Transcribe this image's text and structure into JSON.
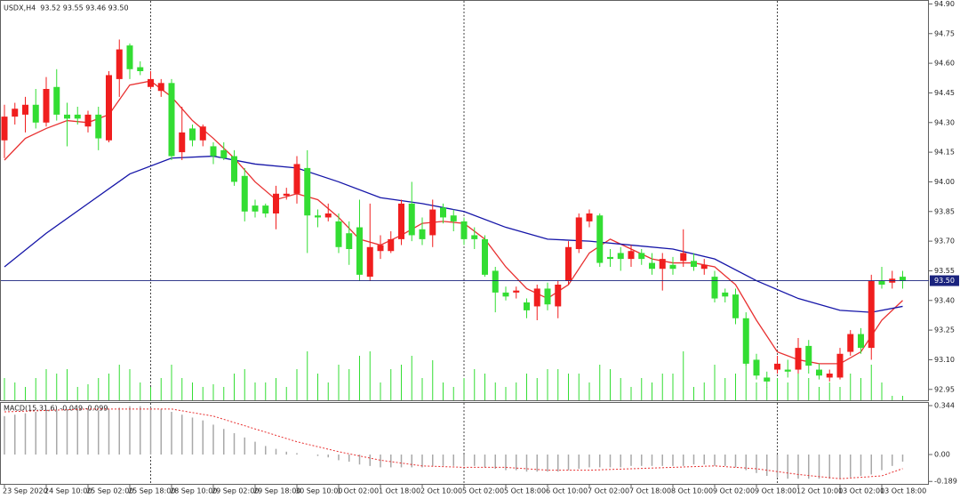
{
  "chart_data": {
    "type": "candlestick",
    "title": "USDX,H4  93.52 93.55 93.46 93.50",
    "categories": [
      "23 Sep 2020",
      null,
      null,
      null,
      "24 Sep 10:00",
      null,
      null,
      null,
      "25 Sep 02:00",
      null,
      null,
      null,
      "25 Sep 18:00",
      null,
      null,
      null,
      "28 Sep 10:00",
      null,
      null,
      null,
      "29 Sep 02:00",
      null,
      null,
      null,
      "29 Sep 18:00",
      null,
      null,
      null,
      "30 Sep 10:00",
      null,
      null,
      null,
      "1 Oct 02:00",
      null,
      null,
      null,
      "1 Oct 18:00",
      null,
      null,
      null,
      "2 Oct 10:00",
      null,
      null,
      null,
      "5 Oct 02:00",
      null,
      null,
      null,
      "5 Oct 18:00",
      null,
      null,
      null,
      "6 Oct 10:00",
      null,
      null,
      null,
      "7 Oct 02:00",
      null,
      null,
      null,
      "7 Oct 18:00",
      null,
      null,
      null,
      "8 Oct 10:00",
      null,
      null,
      null,
      "9 Oct 02:00",
      null,
      null,
      null,
      "9 Oct 18:00",
      null,
      null,
      null,
      "12 Oct 10:00",
      null,
      null,
      null,
      "13 Oct 02:00",
      null,
      null,
      null,
      "13 Oct 18:00",
      null,
      null
    ],
    "open": [
      94.21,
      94.33,
      94.34,
      94.39,
      94.3,
      94.48,
      94.34,
      94.34,
      94.28,
      94.34,
      94.21,
      94.52,
      94.69,
      94.58,
      94.48,
      94.46,
      94.5,
      94.15,
      94.27,
      94.21,
      94.18,
      94.16,
      94.13,
      94.03,
      93.88,
      93.88,
      93.84,
      93.93,
      93.94,
      94.07,
      93.83,
      93.82,
      93.8,
      93.74,
      93.77,
      93.52,
      93.65,
      93.65,
      93.71,
      93.89,
      93.76,
      93.73,
      93.87,
      93.83,
      93.8,
      93.73,
      93.71,
      93.55,
      93.44,
      93.44,
      93.39,
      93.37,
      93.46,
      93.37,
      93.5,
      93.66,
      93.8,
      93.83,
      93.62,
      93.64,
      93.61,
      93.64,
      93.59,
      93.56,
      93.58,
      93.6,
      93.6,
      93.56,
      93.52,
      93.44,
      93.43,
      93.31,
      93.1,
      93.01,
      93.05,
      93.05,
      93.05,
      93.17,
      93.05,
      93.01,
      93.01,
      93.14,
      93.23,
      93.16,
      93.5,
      93.49,
      93.52
    ],
    "high": [
      94.39,
      94.4,
      94.43,
      94.47,
      94.53,
      94.57,
      94.4,
      94.38,
      94.36,
      94.38,
      94.56,
      94.72,
      94.7,
      94.61,
      94.56,
      94.52,
      94.52,
      94.38,
      94.29,
      94.29,
      94.2,
      94.2,
      94.16,
      94.07,
      93.91,
      93.89,
      93.98,
      93.97,
      94.13,
      94.16,
      93.86,
      93.89,
      93.84,
      93.8,
      93.91,
      93.89,
      93.73,
      93.75,
      93.91,
      94.0,
      93.82,
      93.91,
      93.89,
      93.86,
      93.82,
      93.77,
      93.73,
      93.57,
      93.47,
      93.47,
      93.41,
      93.48,
      93.49,
      93.5,
      93.7,
      93.84,
      93.86,
      93.84,
      93.66,
      93.67,
      93.68,
      93.66,
      93.64,
      93.64,
      93.62,
      93.76,
      93.64,
      93.61,
      93.55,
      93.46,
      93.46,
      93.34,
      93.13,
      93.04,
      93.12,
      93.1,
      93.21,
      93.2,
      93.08,
      93.05,
      93.16,
      93.25,
      93.26,
      93.53,
      93.57,
      93.55,
      93.55
    ],
    "low": [
      94.12,
      94.29,
      94.25,
      94.27,
      94.28,
      94.31,
      94.18,
      94.29,
      94.25,
      94.16,
      94.2,
      94.43,
      94.52,
      94.54,
      94.47,
      94.43,
      94.11,
      94.11,
      94.18,
      94.18,
      94.09,
      94.11,
      93.98,
      93.8,
      93.82,
      93.82,
      93.76,
      93.91,
      93.89,
      93.64,
      93.77,
      93.8,
      93.64,
      93.58,
      93.5,
      93.5,
      93.61,
      93.64,
      93.68,
      93.7,
      93.68,
      93.67,
      93.79,
      93.75,
      93.68,
      93.66,
      93.52,
      93.34,
      93.4,
      93.41,
      93.31,
      93.3,
      93.35,
      93.31,
      93.48,
      93.64,
      93.77,
      93.57,
      93.57,
      93.55,
      93.57,
      93.58,
      93.53,
      93.45,
      93.53,
      93.57,
      93.55,
      93.53,
      93.39,
      93.39,
      93.28,
      93.07,
      93.0,
      92.96,
      93.03,
      93.01,
      93.03,
      93.03,
      93.0,
      92.99,
      93.0,
      93.12,
      93.13,
      93.1,
      93.46,
      93.46,
      93.46
    ],
    "close": [
      94.33,
      94.37,
      94.39,
      94.3,
      94.47,
      94.34,
      94.32,
      94.32,
      94.34,
      94.22,
      94.54,
      94.67,
      94.57,
      94.56,
      94.52,
      94.5,
      94.13,
      94.25,
      94.21,
      94.28,
      94.13,
      94.12,
      94.0,
      93.85,
      93.85,
      93.84,
      93.94,
      93.94,
      94.09,
      93.83,
      93.82,
      93.84,
      93.67,
      93.66,
      93.53,
      93.67,
      93.68,
      93.71,
      93.89,
      93.73,
      93.71,
      93.86,
      93.82,
      93.8,
      93.71,
      93.71,
      93.53,
      93.44,
      93.42,
      93.45,
      93.35,
      93.46,
      93.38,
      93.48,
      93.67,
      93.82,
      93.84,
      93.59,
      93.61,
      93.61,
      93.65,
      93.61,
      93.56,
      93.61,
      93.56,
      93.64,
      93.57,
      93.58,
      93.41,
      93.42,
      93.31,
      93.08,
      93.02,
      92.99,
      93.08,
      93.04,
      93.16,
      93.07,
      93.02,
      93.03,
      93.13,
      93.23,
      93.16,
      93.5,
      93.48,
      93.51,
      93.5
    ],
    "up_color": "#f01e1e",
    "down_color": "#33dd33",
    "volume": [
      25,
      20,
      15,
      25,
      35,
      30,
      35,
      15,
      18,
      25,
      30,
      40,
      35,
      20,
      15,
      25,
      40,
      25,
      20,
      15,
      18,
      15,
      30,
      35,
      20,
      20,
      25,
      15,
      35,
      55,
      30,
      20,
      40,
      35,
      50,
      55,
      20,
      35,
      40,
      50,
      25,
      45,
      20,
      15,
      25,
      35,
      30,
      20,
      15,
      20,
      30,
      25,
      35,
      35,
      30,
      30,
      20,
      40,
      35,
      25,
      15,
      25,
      20,
      30,
      30,
      55,
      15,
      20,
      40,
      25,
      30,
      45,
      20,
      15,
      25,
      20,
      30,
      25,
      15,
      20,
      15,
      30,
      25,
      40,
      20,
      5,
      5
    ],
    "volume_color": "#33dd33",
    "ylim": [
      92.895,
      94.92
    ],
    "yticks": [
      {
        "value": 94.9,
        "label": "94.90"
      },
      94.75,
      {
        "value": 94.6,
        "label": "94.60"
      },
      94.45,
      {
        "value": 94.3,
        "label": "94.30"
      },
      94.15,
      {
        "value": 94,
        "label": "94.00"
      },
      93.85,
      {
        "value": 93.7,
        "label": "93.70"
      },
      93.55,
      {
        "value": 93.4,
        "label": "93.40"
      },
      93.25,
      {
        "value": 93.1,
        "label": "93.10"
      },
      92.95
    ],
    "last_price": {
      "value": 93.5,
      "label": "93.50"
    },
    "last_price_color": "#1a237e",
    "overlays": [
      {
        "color": "#e83030",
        "x": [
          0,
          2,
          4,
          6,
          8,
          10,
          12,
          14,
          16,
          18,
          20,
          22,
          24,
          26,
          28,
          30,
          32,
          34,
          36,
          38,
          40,
          42,
          44,
          46,
          48,
          50,
          52,
          54,
          56,
          58,
          60,
          62,
          64,
          66,
          68,
          70,
          72,
          74,
          76,
          78,
          80,
          82,
          84,
          86
        ],
        "values": [
          94.11,
          94.22,
          94.27,
          94.31,
          94.3,
          94.34,
          94.49,
          94.51,
          94.43,
          94.31,
          94.22,
          94.12,
          94.0,
          93.91,
          93.94,
          93.91,
          93.82,
          93.71,
          93.68,
          93.73,
          93.79,
          93.8,
          93.79,
          93.71,
          93.57,
          93.46,
          93.41,
          93.48,
          93.64,
          93.71,
          93.66,
          93.61,
          93.59,
          93.59,
          93.57,
          93.48,
          93.3,
          93.14,
          93.1,
          93.08,
          93.08,
          93.14,
          93.3,
          93.4
        ]
      },
      {
        "color": "#1515a8",
        "x": [
          0,
          4,
          8,
          12,
          16,
          20,
          24,
          28,
          32,
          36,
          40,
          44,
          48,
          52,
          56,
          60,
          64,
          68,
          72,
          76,
          80,
          83,
          86
        ],
        "values": [
          93.57,
          93.74,
          93.89,
          94.04,
          94.12,
          94.13,
          94.09,
          94.07,
          94.0,
          93.92,
          93.89,
          93.85,
          93.77,
          93.71,
          93.7,
          93.68,
          93.66,
          93.61,
          93.5,
          93.41,
          93.35,
          93.34,
          93.37
        ]
      }
    ],
    "macd": {
      "title": "MACD(15,31,6) -0.049 -0.099",
      "histogram": [
        0.27,
        0.28,
        0.29,
        0.3,
        0.31,
        0.31,
        0.32,
        0.32,
        0.32,
        0.31,
        0.32,
        0.33,
        0.34,
        0.34,
        0.33,
        0.32,
        0.3,
        0.28,
        0.26,
        0.24,
        0.21,
        0.18,
        0.15,
        0.12,
        0.09,
        0.06,
        0.04,
        0.02,
        0.01,
        0,
        -0.01,
        -0.02,
        -0.04,
        -0.05,
        -0.07,
        -0.08,
        -0.09,
        -0.09,
        -0.09,
        -0.09,
        -0.09,
        -0.08,
        -0.08,
        -0.08,
        -0.08,
        -0.08,
        -0.09,
        -0.1,
        -0.11,
        -0.11,
        -0.12,
        -0.12,
        -0.12,
        -0.12,
        -0.11,
        -0.1,
        -0.09,
        -0.09,
        -0.09,
        -0.09,
        -0.08,
        -0.08,
        -0.08,
        -0.08,
        -0.08,
        -0.08,
        -0.07,
        -0.07,
        -0.08,
        -0.08,
        -0.09,
        -0.11,
        -0.13,
        -0.15,
        -0.16,
        -0.17,
        -0.17,
        -0.17,
        -0.17,
        -0.17,
        -0.17,
        -0.16,
        -0.15,
        -0.14,
        -0.11,
        -0.08,
        -0.05
      ],
      "histogram_color": "#a8a8a8",
      "signal": {
        "color": "#e83030",
        "x": [
          0,
          4,
          8,
          12,
          16,
          20,
          24,
          28,
          32,
          36,
          40,
          44,
          48,
          52,
          56,
          60,
          64,
          68,
          72,
          76,
          80,
          84,
          86
        ],
        "values": [
          0.3,
          0.31,
          0.32,
          0.32,
          0.32,
          0.27,
          0.18,
          0.09,
          0.02,
          -0.04,
          -0.08,
          -0.09,
          -0.09,
          -0.11,
          -0.11,
          -0.1,
          -0.09,
          -0.08,
          -0.1,
          -0.14,
          -0.17,
          -0.15,
          -0.099
        ]
      },
      "ylim": [
        -0.2125,
        0.369
      ],
      "yticks": [
        0.344,
        {
          "value": 0,
          "label": "0.00"
        },
        -0.189
      ]
    }
  }
}
